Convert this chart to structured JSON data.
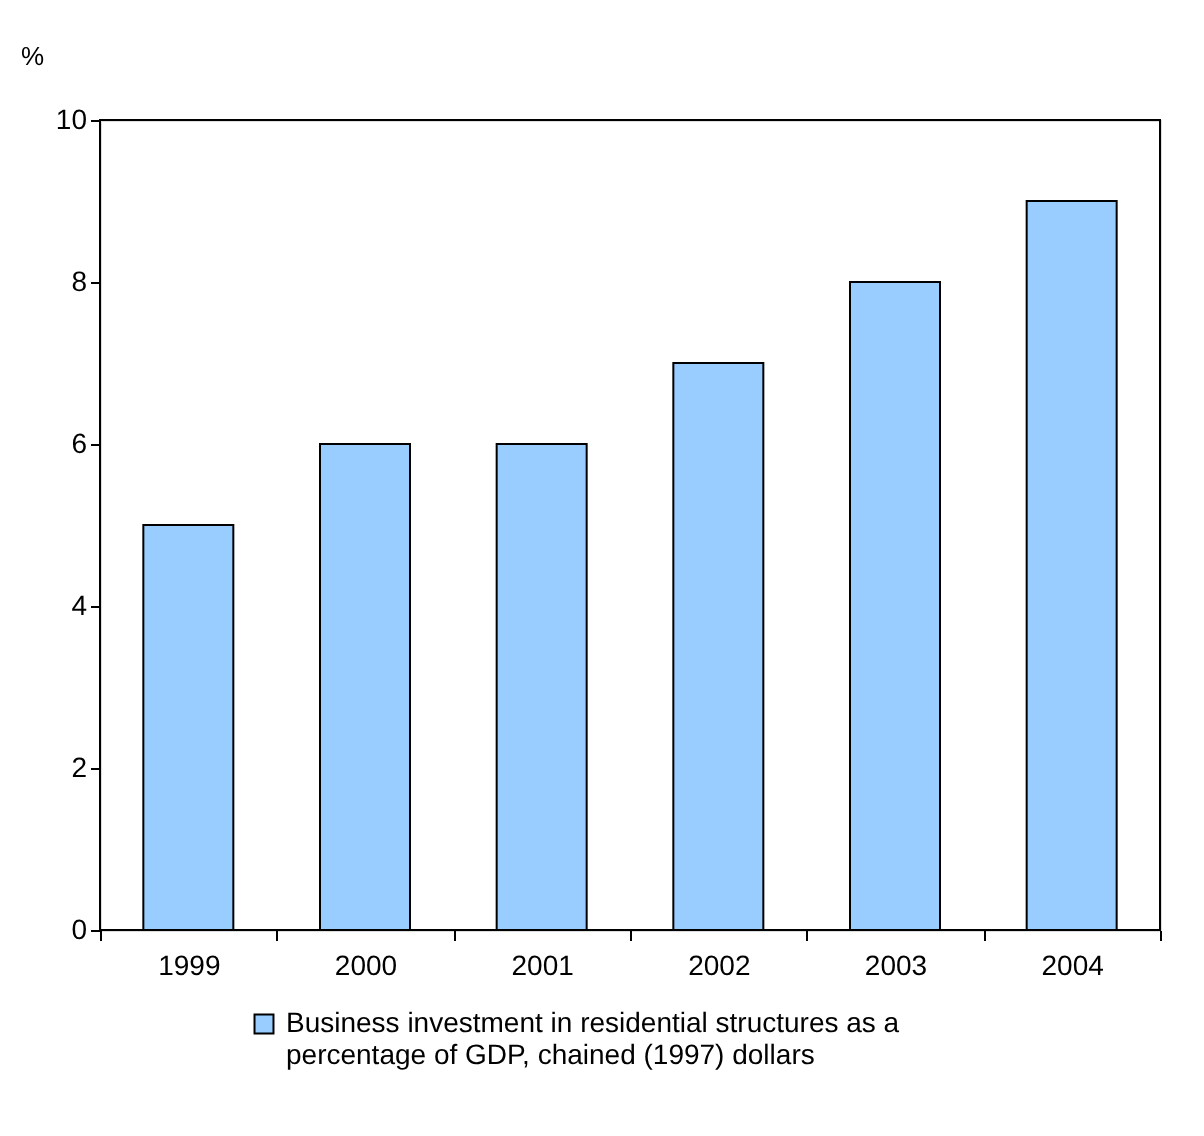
{
  "chart_data": {
    "type": "bar",
    "ylabel": "%",
    "categories": [
      "1999",
      "2000",
      "2001",
      "2002",
      "2003",
      "2004"
    ],
    "series": [
      {
        "name": "Business investment in residential structures as a percentage of GDP, chained (1997) dollars",
        "color": "#99ccff",
        "values": [
          5,
          6,
          6,
          7,
          8,
          9
        ]
      }
    ],
    "ylim": [
      0,
      10
    ],
    "yticks": [
      0,
      2,
      4,
      6,
      8,
      10
    ],
    "grid": false,
    "legend": "bottom"
  }
}
